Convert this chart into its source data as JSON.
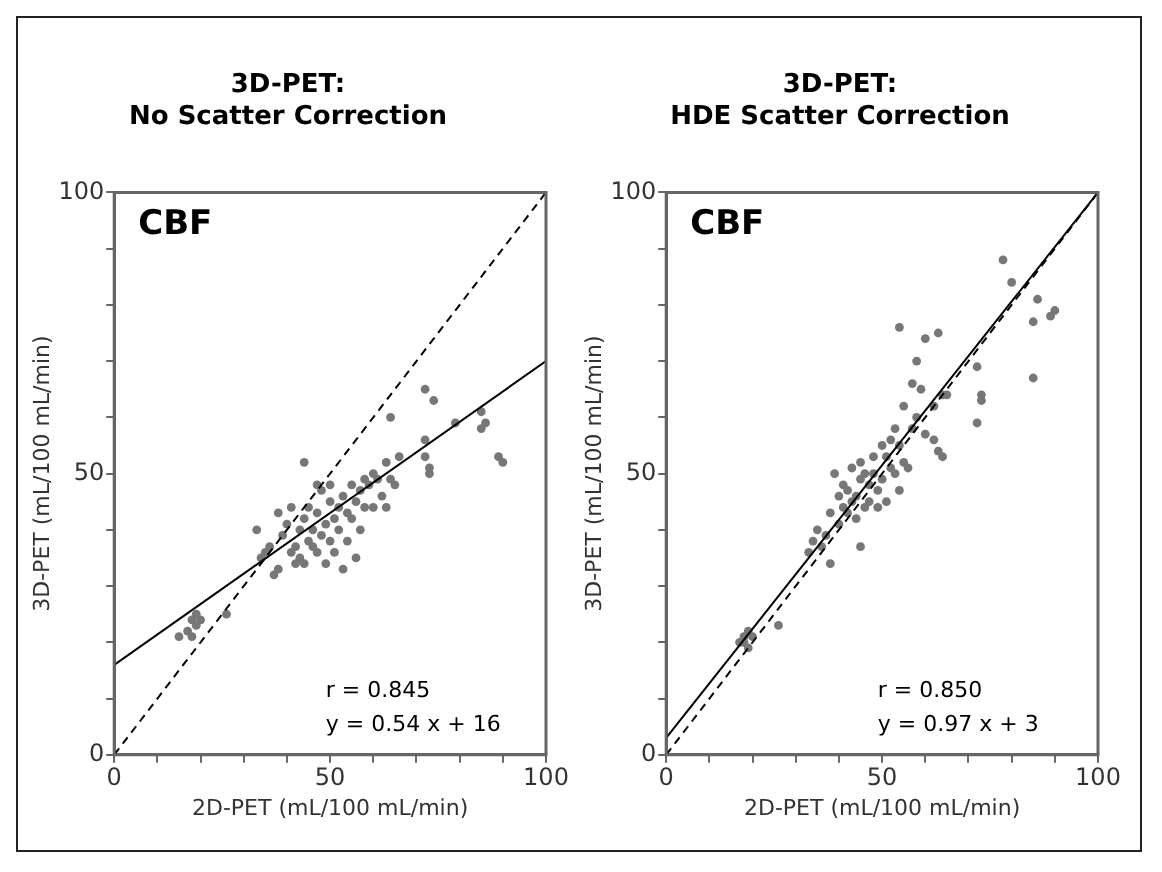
{
  "chart_data": [
    {
      "type": "scatter",
      "title": "3D-PET:\nNo Scatter Correction",
      "xlabel": "2D-PET (mL/100 mL/min)",
      "ylabel": "3D-PET (mL/100 mL/min)",
      "annotations": [
        "CBF",
        "r = 0.845",
        "y = 0.54 x + 16"
      ],
      "xlim": [
        0,
        100
      ],
      "ylim": [
        0,
        100
      ],
      "xticks": [
        0,
        {
          "value": 10,
          "label": null
        },
        {
          "value": 20,
          "label": null
        },
        {
          "value": 30,
          "label": null
        },
        {
          "value": 40,
          "label": null
        },
        50,
        {
          "value": 60,
          "label": null
        },
        {
          "value": 70,
          "label": null
        },
        {
          "value": 80,
          "label": null
        },
        {
          "value": 90,
          "label": null
        },
        100
      ],
      "yticks": [
        0,
        {
          "value": 10,
          "label": null
        },
        {
          "value": 20,
          "label": null
        },
        {
          "value": 30,
          "label": null
        },
        {
          "value": 40,
          "label": null
        },
        50,
        {
          "value": 60,
          "label": null
        },
        {
          "value": 70,
          "label": null
        },
        {
          "value": 80,
          "label": null
        },
        {
          "value": 90,
          "label": null
        },
        100
      ],
      "series": [
        {
          "marker": "circle",
          "color": "#777777",
          "x": [
            15,
            17,
            18,
            18,
            19,
            20,
            19,
            26,
            33,
            34,
            35,
            36,
            37,
            38,
            38,
            39,
            40,
            41,
            41,
            42,
            42,
            43,
            43,
            44,
            44,
            45,
            45,
            46,
            46,
            47,
            47,
            48,
            48,
            49,
            49,
            50,
            50,
            51,
            51,
            52,
            52,
            53,
            53,
            54,
            54,
            55,
            55,
            56,
            56,
            57,
            57,
            58,
            58,
            59,
            60,
            60,
            61,
            62,
            63,
            63,
            64,
            64,
            65,
            66,
            72,
            72,
            73,
            73,
            72,
            74,
            79,
            85,
            86,
            85,
            89,
            90,
            44,
            47,
            50
          ],
          "values": [
            21,
            22,
            24,
            21,
            23,
            24,
            25,
            25,
            40,
            35,
            36,
            37,
            32,
            33,
            43,
            39,
            41,
            36,
            44,
            34,
            37,
            40,
            35,
            42,
            34,
            38,
            44,
            37,
            40,
            43,
            36,
            39,
            47,
            34,
            41,
            45,
            38,
            42,
            36,
            44,
            40,
            33,
            46,
            43,
            38,
            48,
            42,
            45,
            35,
            47,
            40,
            49,
            44,
            48,
            50,
            44,
            49,
            46,
            52,
            44,
            60,
            49,
            48,
            53,
            56,
            53,
            51,
            50,
            65,
            63,
            59,
            61,
            59,
            58,
            53,
            52,
            52,
            48,
            48
          ]
        },
        {
          "type": "line",
          "marker": "none",
          "color": "#000000",
          "line_style": "solid",
          "x": [
            0,
            100
          ],
          "values": [
            16,
            70
          ]
        },
        {
          "type": "line",
          "marker": "none",
          "color": "#000000",
          "line_style": "dashed",
          "x": [
            0,
            100
          ],
          "values": [
            0,
            100
          ]
        }
      ]
    },
    {
      "type": "scatter",
      "title": "3D-PET:\nHDE Scatter Correction",
      "xlabel": "2D-PET (mL/100 mL/min)",
      "ylabel": "3D-PET (mL/100 mL/min)",
      "annotations": [
        "CBF",
        "r = 0.850",
        "y = 0.97 x + 3"
      ],
      "xlim": [
        0,
        100
      ],
      "ylim": [
        0,
        100
      ],
      "xticks": [
        0,
        {
          "value": 10,
          "label": null
        },
        {
          "value": 20,
          "label": null
        },
        {
          "value": 30,
          "label": null
        },
        {
          "value": 40,
          "label": null
        },
        50,
        {
          "value": 60,
          "label": null
        },
        {
          "value": 70,
          "label": null
        },
        {
          "value": 80,
          "label": null
        },
        {
          "value": 90,
          "label": null
        },
        100
      ],
      "yticks": [
        0,
        {
          "value": 10,
          "label": null
        },
        {
          "value": 20,
          "label": null
        },
        {
          "value": 30,
          "label": null
        },
        {
          "value": 40,
          "label": null
        },
        50,
        {
          "value": 60,
          "label": null
        },
        {
          "value": 70,
          "label": null
        },
        {
          "value": 80,
          "label": null
        },
        {
          "value": 90,
          "label": null
        },
        100
      ],
      "series": [
        {
          "marker": "circle",
          "color": "#777777",
          "x": [
            17,
            18,
            19,
            19,
            18,
            20,
            26,
            33,
            34,
            35,
            36,
            37,
            38,
            38,
            39,
            40,
            40,
            41,
            41,
            42,
            42,
            43,
            43,
            44,
            44,
            45,
            45,
            45,
            46,
            46,
            47,
            47,
            48,
            48,
            49,
            49,
            50,
            50,
            51,
            51,
            52,
            52,
            53,
            53,
            54,
            54,
            55,
            55,
            56,
            57,
            57,
            58,
            58,
            59,
            60,
            60,
            62,
            62,
            63,
            64,
            64,
            65,
            63,
            54,
            72,
            73,
            72,
            78,
            80,
            85,
            86,
            85,
            90,
            89,
            73
          ],
          "values": [
            20,
            21,
            22,
            19,
            20,
            21,
            23,
            36,
            38,
            40,
            37,
            39,
            43,
            34,
            50,
            46,
            41,
            48,
            44,
            47,
            43,
            51,
            45,
            46,
            42,
            52,
            49,
            37,
            50,
            44,
            48,
            45,
            53,
            50,
            47,
            44,
            55,
            49,
            53,
            45,
            51,
            56,
            58,
            50,
            55,
            47,
            52,
            62,
            51,
            66,
            58,
            60,
            70,
            65,
            57,
            74,
            56,
            62,
            54,
            53,
            64,
            64,
            75,
            76,
            69,
            63,
            59,
            88,
            84,
            77,
            81,
            67,
            79,
            78,
            64
          ]
        },
        {
          "type": "line",
          "marker": "none",
          "color": "#000000",
          "line_style": "solid",
          "x": [
            0,
            100
          ],
          "values": [
            3,
            100
          ]
        },
        {
          "type": "line",
          "marker": "none",
          "color": "#000000",
          "line_style": "dashed",
          "x": [
            0,
            100
          ],
          "values": [
            0,
            100
          ]
        }
      ]
    }
  ]
}
